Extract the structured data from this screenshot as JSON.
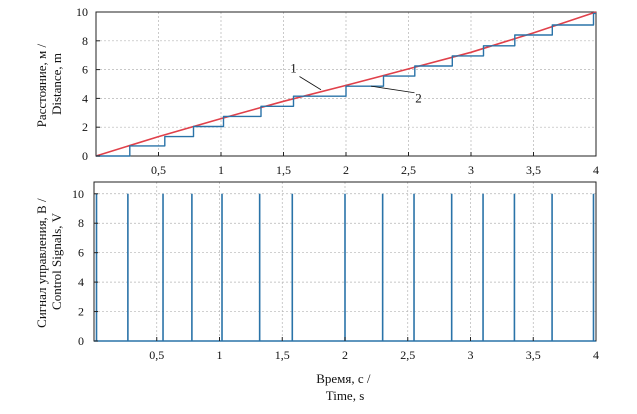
{
  "chart_data": [
    {
      "type": "line",
      "title": "",
      "ylabel": [
        "Расстояние, м /",
        "Distance, m"
      ],
      "xlabel": "",
      "xlim": [
        0,
        4
      ],
      "ylim": [
        0,
        10
      ],
      "x_ticks": [
        0.5,
        1,
        1.5,
        2,
        2.5,
        3,
        3.5,
        4
      ],
      "x_tick_labels": [
        "0,5",
        "1",
        "1,5",
        "2",
        "2,5",
        "3",
        "3,5",
        "4"
      ],
      "y_ticks": [
        0,
        2,
        4,
        6,
        8,
        10
      ],
      "y_tick_labels": [
        "0",
        "2",
        "4",
        "6",
        "8",
        "10"
      ],
      "grid": true,
      "series": [
        {
          "name": "1",
          "color": "#e0404a",
          "style": "line",
          "x": [
            0,
            0.5,
            1,
            1.5,
            2,
            2.5,
            3,
            3.5,
            4
          ],
          "y": [
            0,
            1.35,
            2.6,
            3.8,
            4.9,
            6.05,
            7.2,
            8.55,
            10
          ]
        },
        {
          "name": "2",
          "color": "#2a73a8",
          "style": "step",
          "x": [
            0,
            0.27,
            0.27,
            0.55,
            0.55,
            0.78,
            0.78,
            1.02,
            1.02,
            1.32,
            1.32,
            1.58,
            1.58,
            2.0,
            2.0,
            2.3,
            2.3,
            2.55,
            2.55,
            2.85,
            2.85,
            3.1,
            3.1,
            3.35,
            3.35,
            3.65,
            3.65,
            3.98,
            3.98,
            4.0
          ],
          "y": [
            0,
            0,
            0.7,
            0.7,
            1.35,
            1.35,
            2.05,
            2.05,
            2.75,
            2.75,
            3.45,
            3.45,
            4.15,
            4.15,
            4.85,
            4.85,
            5.55,
            5.55,
            6.25,
            6.25,
            6.95,
            6.95,
            7.65,
            7.65,
            8.4,
            8.4,
            9.1,
            9.1,
            9.9,
            9.9
          ]
        }
      ],
      "annotations": [
        {
          "text": "1",
          "target_x": 1.8,
          "target_y": 4.6,
          "label_x": 1.58,
          "label_y": 5.8
        },
        {
          "text": "2",
          "target_x": 2.2,
          "target_y": 4.85,
          "label_x": 2.58,
          "label_y": 3.7
        }
      ]
    },
    {
      "type": "bar",
      "title": "",
      "ylabel": [
        "Сигнал управления, В /",
        "Control Signals, V"
      ],
      "xlabel": [
        "Время, с /",
        "Time, s"
      ],
      "xlim": [
        0,
        4
      ],
      "ylim": [
        0,
        10.8
      ],
      "x_ticks": [
        0.5,
        1,
        1.5,
        2,
        2.5,
        3,
        3.5,
        4
      ],
      "x_tick_labels": [
        "0,5",
        "1",
        "1,5",
        "2",
        "2,5",
        "3",
        "3,5",
        "4"
      ],
      "y_ticks": [
        0,
        2,
        4,
        6,
        8,
        10
      ],
      "y_tick_labels": [
        "0",
        "2",
        "4",
        "6",
        "8",
        "10"
      ],
      "grid": true,
      "series": [
        {
          "name": "",
          "color": "#2a73a8",
          "style": "pulse",
          "x": [
            0.02,
            0.27,
            0.55,
            0.78,
            1.02,
            1.32,
            1.58,
            2.0,
            2.3,
            2.55,
            2.85,
            3.1,
            3.35,
            3.65,
            3.98
          ],
          "y": [
            10,
            10,
            10,
            10,
            10,
            10,
            10,
            10,
            10,
            10,
            10,
            10,
            10,
            10,
            10
          ]
        }
      ]
    }
  ]
}
